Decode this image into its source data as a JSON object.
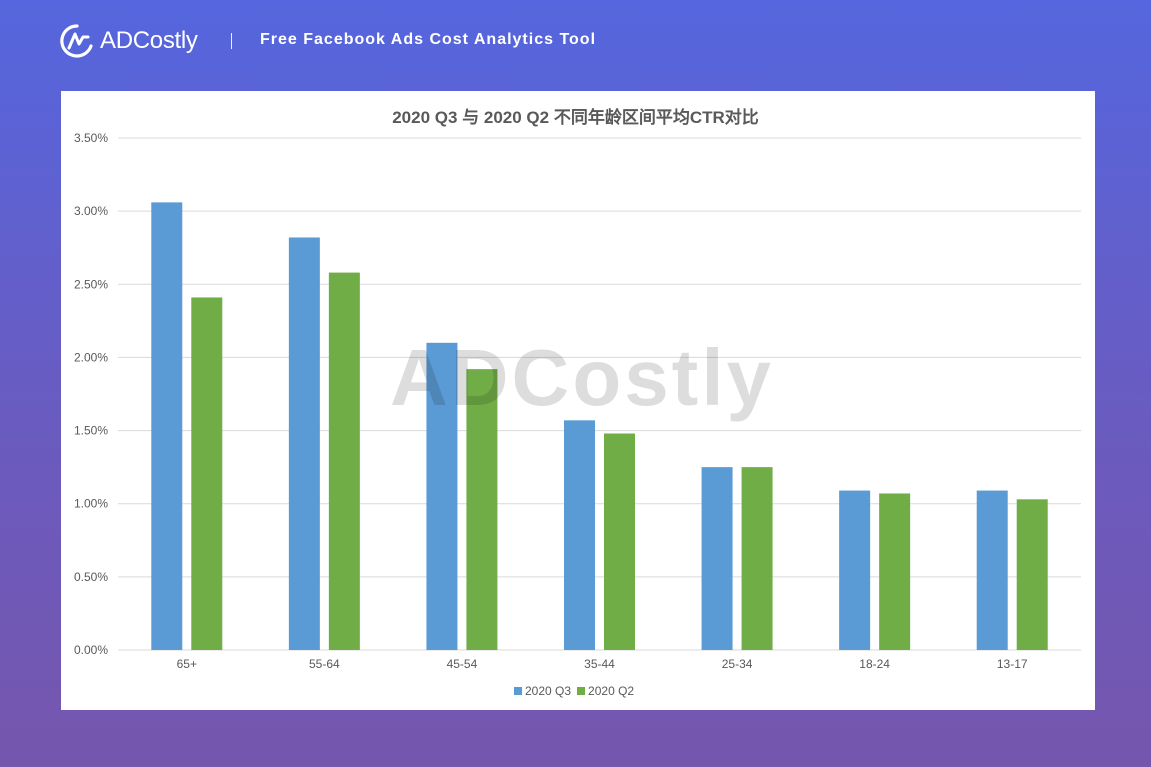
{
  "header": {
    "brand": "ADCostly",
    "tagline": "Free Facebook Ads Cost Analytics Tool",
    "logo_icon": "adcostly-logo-icon"
  },
  "watermark": "ADCostly",
  "colors": {
    "q3": "#5b9bd5",
    "q2": "#70ad47",
    "grid": "#d9d9d9",
    "text": "#595959"
  },
  "chart_data": {
    "type": "bar",
    "title": "2020 Q3 与 2020 Q2 不同年龄区间平均CTR对比",
    "categories": [
      "65+",
      "55-64",
      "45-54",
      "35-44",
      "25-34",
      "18-24",
      "13-17"
    ],
    "series": [
      {
        "name": "2020 Q3",
        "color": "#5b9bd5",
        "values": [
          3.06,
          2.82,
          2.1,
          1.57,
          1.25,
          1.09,
          1.09
        ]
      },
      {
        "name": "2020 Q2",
        "color": "#70ad47",
        "values": [
          2.41,
          2.58,
          1.92,
          1.48,
          1.25,
          1.07,
          1.03
        ]
      }
    ],
    "ylim": [
      0,
      3.5
    ],
    "y_ticks": [
      "0.00%",
      "0.50%",
      "1.00%",
      "1.50%",
      "2.00%",
      "2.50%",
      "3.00%",
      "3.50%"
    ],
    "y_tick_values": [
      0,
      0.5,
      1.0,
      1.5,
      2.0,
      2.5,
      3.0,
      3.5
    ],
    "grid": true,
    "legend_position": "bottom"
  }
}
